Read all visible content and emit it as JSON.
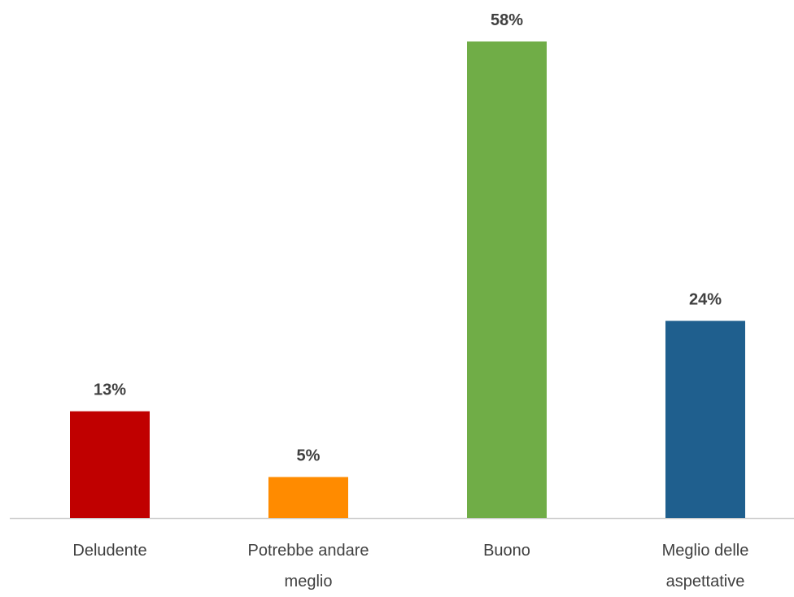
{
  "chart_data": {
    "type": "bar",
    "categories": [
      "Deludente",
      "Potrebbe andare meglio",
      "Buono",
      "Meglio delle aspettative"
    ],
    "values": [
      13,
      5,
      58,
      24
    ],
    "value_labels": [
      "13%",
      "5%",
      "58%",
      "24%"
    ],
    "colors": [
      "#c00000",
      "#ff8b00",
      "#70ad47",
      "#1f5f8e"
    ],
    "grid": false
  }
}
